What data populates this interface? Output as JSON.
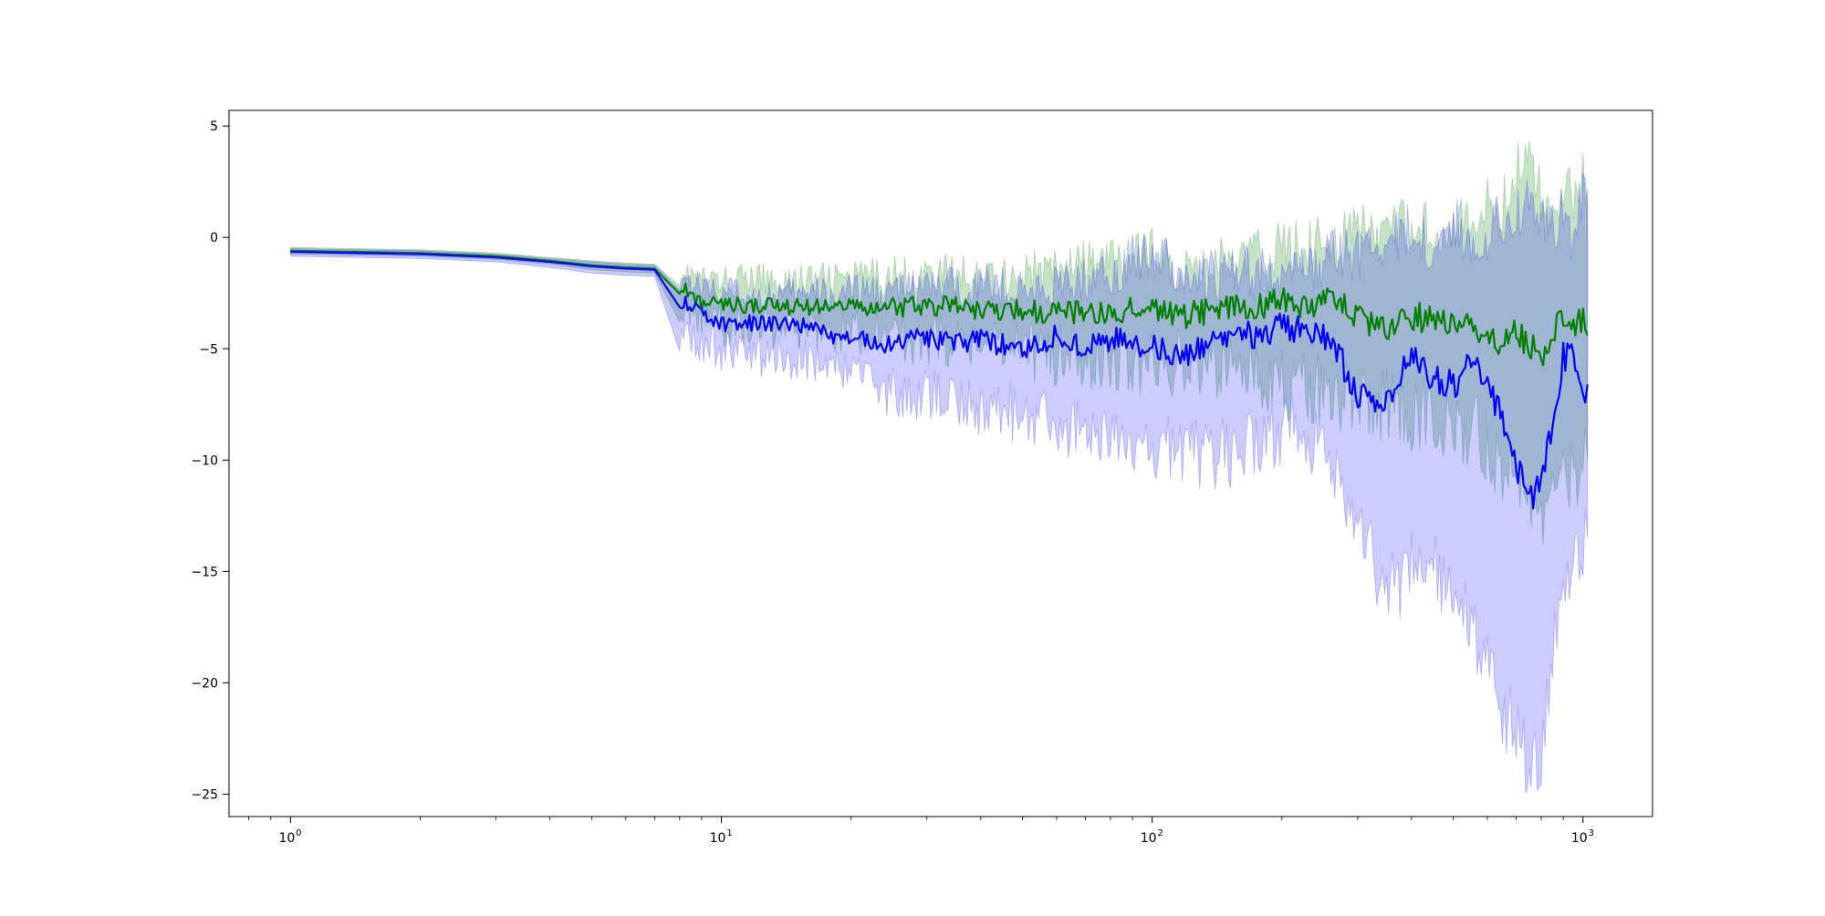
{
  "chart_data": {
    "type": "line",
    "title": "",
    "xlabel": "",
    "ylabel": "",
    "x_scale": "log",
    "xlim": [
      0.72,
      1450
    ],
    "ylim": [
      -26,
      5.7
    ],
    "grid": false,
    "legend": "none",
    "x_ticks": [
      {
        "value": 1,
        "base": "10",
        "exp": "0"
      },
      {
        "value": 10,
        "base": "10",
        "exp": "1"
      },
      {
        "value": 100,
        "base": "10",
        "exp": "2"
      },
      {
        "value": 1000,
        "base": "10",
        "exp": "3"
      }
    ],
    "y_ticks": [
      {
        "value": 5,
        "label": "5"
      },
      {
        "value": 0,
        "label": "0"
      },
      {
        "value": -5,
        "label": "−5"
      },
      {
        "value": -10,
        "label": "−10"
      },
      {
        "value": -15,
        "label": "−15"
      },
      {
        "value": -20,
        "label": "−20"
      },
      {
        "value": -25,
        "label": "−25"
      }
    ],
    "x": [
      1,
      2,
      3,
      4,
      5,
      6,
      7,
      8,
      9,
      10,
      12,
      15,
      18,
      20,
      25,
      30,
      35,
      40,
      50,
      60,
      70,
      80,
      100,
      120,
      140,
      160,
      180,
      200,
      230,
      260,
      300,
      350,
      400,
      450,
      500,
      550,
      600,
      650,
      700,
      750,
      800,
      850,
      900,
      950,
      1000,
      1024
    ],
    "series": [
      {
        "color": "#008000",
        "band_color": "#008000",
        "values": [
          -0.6,
          -0.7,
          -0.85,
          -1.05,
          -1.25,
          -1.35,
          -1.4,
          -2.2,
          -2.95,
          -3.05,
          -3.05,
          -3.1,
          -3.1,
          -3.2,
          -3.15,
          -3.05,
          -3.1,
          -3.3,
          -3.3,
          -3.35,
          -3.3,
          -3.4,
          -3.15,
          -3.5,
          -3.25,
          -3.2,
          -3.0,
          -2.8,
          -3.0,
          -2.8,
          -3.6,
          -4.1,
          -3.5,
          -3.8,
          -3.9,
          -4.0,
          -4.2,
          -4.8,
          -4.3,
          -4.8,
          -5.4,
          -4.3,
          -3.3,
          -4.0,
          -3.7,
          -4.4
        ],
        "lower": [
          -0.75,
          -0.85,
          -1.0,
          -1.2,
          -1.45,
          -1.55,
          -1.6,
          -2.9,
          -3.8,
          -3.95,
          -3.95,
          -4.0,
          -4.1,
          -4.3,
          -4.4,
          -4.6,
          -4.6,
          -4.9,
          -5.1,
          -5.3,
          -5.4,
          -5.5,
          -5.6,
          -5.7,
          -5.9,
          -6.1,
          -6.4,
          -6.5,
          -6.8,
          -7.1,
          -7.4,
          -7.6,
          -7.8,
          -8.0,
          -8.3,
          -8.7,
          -9.2,
          -10.2,
          -11.2,
          -12.5,
          -13.3,
          -12.0,
          -11.0,
          -10.5,
          -10.3,
          -10.0
        ],
        "upper": [
          -0.45,
          -0.55,
          -0.7,
          -0.9,
          -1.05,
          -1.15,
          -1.2,
          -1.5,
          -1.9,
          -2.0,
          -1.9,
          -1.95,
          -1.9,
          -1.85,
          -1.7,
          -1.7,
          -1.6,
          -1.8,
          -1.6,
          -1.5,
          -1.2,
          -1.1,
          -0.7,
          -1.6,
          -1.0,
          -1.0,
          -0.8,
          -0.5,
          -0.3,
          -0.1,
          0.3,
          0.1,
          0.6,
          0.4,
          0.8,
          0.2,
          1.5,
          1.2,
          3.2,
          3.5,
          1.8,
          1.2,
          2.6,
          2.0,
          2.8,
          2.2
        ]
      },
      {
        "color": "#0000ff",
        "band_color": "#0000ff",
        "values": [
          -0.65,
          -0.75,
          -0.9,
          -1.1,
          -1.3,
          -1.4,
          -1.45,
          -2.8,
          -3.45,
          -3.85,
          -3.85,
          -3.95,
          -4.4,
          -4.5,
          -4.85,
          -4.45,
          -4.8,
          -4.6,
          -5.05,
          -4.45,
          -4.9,
          -4.55,
          -4.95,
          -5.3,
          -4.8,
          -4.1,
          -4.7,
          -3.9,
          -4.3,
          -4.5,
          -7.1,
          -7.6,
          -5.3,
          -6.3,
          -6.6,
          -5.6,
          -6.4,
          -8.3,
          -10.2,
          -12.0,
          -10.5,
          -8.8,
          -5.4,
          -5.0,
          -6.9,
          -6.6
        ],
        "lower": [
          -0.85,
          -0.95,
          -1.1,
          -1.35,
          -1.6,
          -1.7,
          -1.75,
          -4.2,
          -4.9,
          -5.05,
          -5.3,
          -5.5,
          -5.9,
          -6.1,
          -7.0,
          -7.1,
          -7.3,
          -7.6,
          -7.9,
          -8.3,
          -8.7,
          -8.9,
          -9.3,
          -9.6,
          -9.8,
          -9.6,
          -9.0,
          -8.5,
          -8.8,
          -9.5,
          -12.8,
          -16.0,
          -15.0,
          -15.0,
          -16.0,
          -17.5,
          -19.0,
          -21.0,
          -22.5,
          -24.0,
          -23.0,
          -19.0,
          -16.0,
          -14.5,
          -13.8,
          -13.5
        ],
        "upper": [
          -0.5,
          -0.6,
          -0.75,
          -0.95,
          -1.1,
          -1.2,
          -1.25,
          -1.7,
          -2.2,
          -2.4,
          -2.6,
          -2.6,
          -2.5,
          -2.5,
          -2.4,
          -2.3,
          -2.2,
          -2.0,
          -2.5,
          -2.3,
          -1.9,
          -1.6,
          -0.5,
          -1.7,
          -1.8,
          -1.6,
          -1.7,
          -1.5,
          -1.6,
          -1.0,
          -0.6,
          -0.3,
          0.3,
          -0.5,
          0.6,
          -0.3,
          0.3,
          0.8,
          1.0,
          2.0,
          0.8,
          0.2,
          1.0,
          0.0,
          2.0,
          1.5
        ]
      }
    ]
  }
}
